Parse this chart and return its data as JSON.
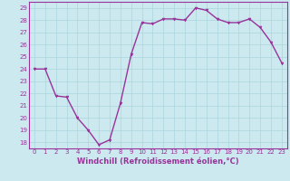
{
  "hours": [
    0,
    1,
    2,
    3,
    4,
    5,
    6,
    7,
    8,
    9,
    10,
    11,
    12,
    13,
    14,
    15,
    16,
    17,
    18,
    19,
    20,
    21,
    22,
    23
  ],
  "values": [
    24,
    24,
    21.8,
    21.7,
    20,
    19,
    17.8,
    18.2,
    21.2,
    25.2,
    27.8,
    27.7,
    28.1,
    28.1,
    28.0,
    29.0,
    28.8,
    28.1,
    27.8,
    27.8,
    28.1,
    27.4,
    26.2,
    24.5
  ],
  "line_color": "#993399",
  "marker": "v",
  "marker_size": 2,
  "bg_color": "#cce9f0",
  "grid_color": "#aad4dd",
  "xlabel": "Windchill (Refroidissement éolien,°C)",
  "ylabel_ticks": [
    18,
    19,
    20,
    21,
    22,
    23,
    24,
    25,
    26,
    27,
    28,
    29
  ],
  "xlim": [
    -0.5,
    23.5
  ],
  "ylim": [
    17.5,
    29.5
  ],
  "xticks": [
    0,
    1,
    2,
    3,
    4,
    5,
    6,
    7,
    8,
    9,
    10,
    11,
    12,
    13,
    14,
    15,
    16,
    17,
    18,
    19,
    20,
    21,
    22,
    23
  ],
  "tick_label_size": 5,
  "xlabel_size": 6,
  "line_width": 1.0
}
